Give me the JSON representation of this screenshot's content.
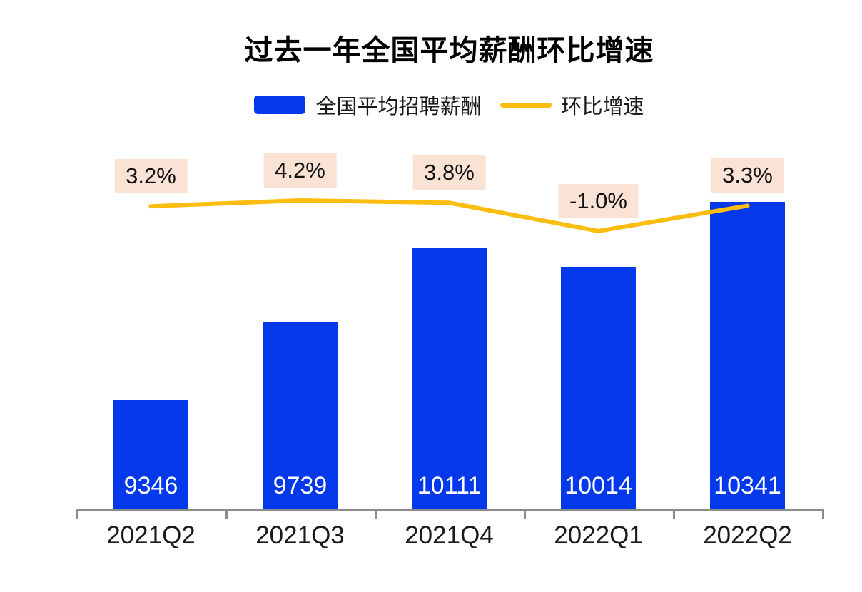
{
  "chart_data": {
    "type": "bar+line",
    "title": "过去一年全国平均薪酬环比增速",
    "categories": [
      "2021Q2",
      "2021Q3",
      "2021Q4",
      "2022Q1",
      "2022Q2"
    ],
    "series": [
      {
        "name": "全国平均招聘薪酬",
        "type": "bar",
        "values": [
          9346,
          9739,
          10111,
          10014,
          10341
        ],
        "color": "#0339EB",
        "value_label_color": "#ffffff"
      },
      {
        "name": "环比增速",
        "type": "line",
        "values": [
          3.2,
          4.2,
          3.8,
          -1.0,
          3.3
        ],
        "labels": [
          "3.2%",
          "4.2%",
          "3.8%",
          "-1.0%",
          "3.3%"
        ],
        "color": "#FBBD10",
        "label_bg": "#FAE3D4",
        "label_text_color": "#111111"
      }
    ],
    "y1lim": [
      8800,
      10600
    ],
    "y2lim": [
      -1.0,
      4.2
    ],
    "legend_position": "top",
    "grid": false,
    "axis_color": "#8C8C8C",
    "x_label_color": "#1a1a1a"
  }
}
